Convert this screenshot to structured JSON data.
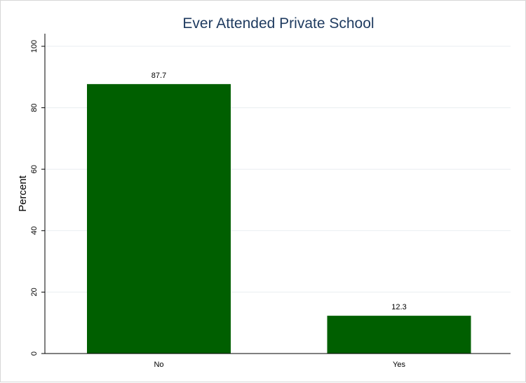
{
  "chart_data": {
    "type": "bar",
    "title": "Ever Attended Private School",
    "xlabel": "",
    "ylabel": "Percent",
    "categories": [
      "No",
      "Yes"
    ],
    "values": [
      87.7,
      12.3
    ],
    "data_labels": [
      "87.7",
      "12.3"
    ],
    "ylim": [
      0,
      100
    ],
    "yticks": [
      "0",
      "20",
      "40",
      "60",
      "80",
      "100"
    ],
    "grid": true,
    "bar_color": "#005f00",
    "title_color": "#1e3a5f",
    "grid_color": "#e9eef1"
  }
}
